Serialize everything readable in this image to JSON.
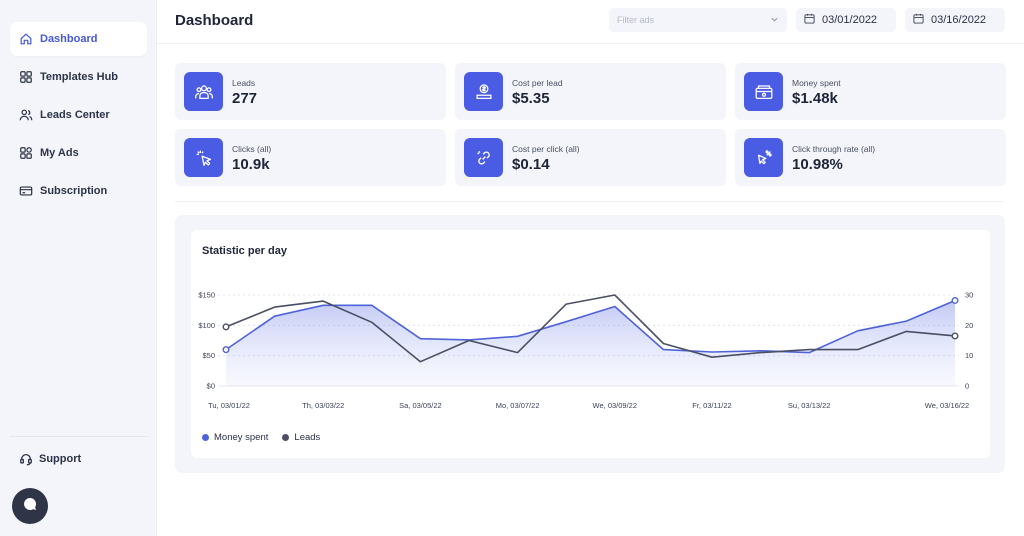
{
  "sidebar": {
    "items": [
      {
        "label": "Dashboard",
        "icon": "home-icon",
        "active": true
      },
      {
        "label": "Templates Hub",
        "icon": "grid-icon",
        "active": false
      },
      {
        "label": "Leads Center",
        "icon": "users-icon",
        "active": false
      },
      {
        "label": "My Ads",
        "icon": "apps-icon",
        "active": false
      },
      {
        "label": "Subscription",
        "icon": "card-icon",
        "active": false
      }
    ],
    "support_label": "Support"
  },
  "header": {
    "title": "Dashboard",
    "filter_placeholder": "Filter ads",
    "date_from": "03/01/2022",
    "date_to": "03/16/2022"
  },
  "kpis": [
    {
      "label": "Leads",
      "value": "277",
      "icon": "leads-icon"
    },
    {
      "label": "Cost per lead",
      "value": "$5.35",
      "icon": "cost-per-lead-icon"
    },
    {
      "label": "Money spent",
      "value": "$1.48k",
      "icon": "money-icon"
    },
    {
      "label": "Clicks (all)",
      "value": "10.9k",
      "icon": "cursor-click-icon"
    },
    {
      "label": "Cost per click (all)",
      "value": "$0.14",
      "icon": "link-icon"
    },
    {
      "label": "Click through rate (all)",
      "value": "10.98%",
      "icon": "cursor-percent-icon"
    }
  ],
  "colors": {
    "accent": "#4a5ce3",
    "money_line": "#4f63d8",
    "leads_line": "#4a4f63"
  },
  "chart_data": {
    "type": "line",
    "title": "Statistic per day",
    "x": [
      "03/01/2022",
      "03/02/2022",
      "03/03/2022",
      "03/04/2022",
      "03/05/2022",
      "03/06/2022",
      "03/07/2022",
      "03/08/2022",
      "03/09/2022",
      "03/10/2022",
      "03/11/2022",
      "03/12/2022",
      "03/13/2022",
      "03/14/2022",
      "03/15/2022",
      "03/16/2022"
    ],
    "tick_labels": [
      {
        "x": "03/01/2022",
        "label": "Tu, 03/01/22"
      },
      {
        "x": "03/03/2022",
        "label": "Th, 03/03/22"
      },
      {
        "x": "03/05/2022",
        "label": "Sa, 03/05/22"
      },
      {
        "x": "03/07/2022",
        "label": "Mo, 03/07/22"
      },
      {
        "x": "03/09/2022",
        "label": "We, 03/09/22"
      },
      {
        "x": "03/11/2022",
        "label": "Fr, 03/11/22"
      },
      {
        "x": "03/13/2022",
        "label": "Su, 03/13/22"
      },
      {
        "x": "03/16/2022",
        "label": "We, 03/16/22"
      }
    ],
    "y_left": {
      "ticks": [
        "$0",
        "$50",
        "$100",
        "$150"
      ],
      "range": [
        0,
        150
      ]
    },
    "y_right": {
      "ticks": [
        "0",
        "10",
        "20",
        "30"
      ],
      "range": [
        0,
        30
      ]
    },
    "series": [
      {
        "name": "Money spent",
        "axis": "left",
        "area": true,
        "values": [
          60,
          115,
          133,
          133,
          78,
          76,
          82,
          106,
          131,
          60,
          56,
          58,
          55,
          91,
          107,
          141
        ]
      },
      {
        "name": "Leads",
        "axis": "right",
        "area": false,
        "values": [
          19.5,
          26,
          28,
          21,
          8,
          15,
          11,
          27,
          30,
          14,
          9.5,
          11,
          12,
          12,
          18,
          16.5
        ]
      }
    ],
    "grid": true,
    "legend_position": "bottom-left"
  }
}
